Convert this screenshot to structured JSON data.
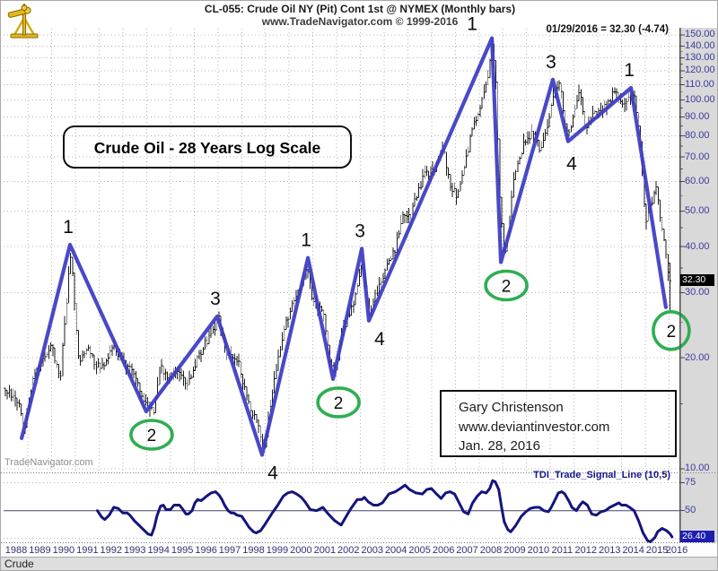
{
  "header": {
    "title": "CL-055:  Crude Oil NY (Pit) Cont 1st @ NYMEX  (Monthly bars)",
    "subtitle": "www.TradeNavigator.com © 1999-2016",
    "quote": "01/29/2016 = 32.30 (-4.74)"
  },
  "colors": {
    "wave_blue": "#3b3bc4",
    "tdi_navy": "#14147e",
    "circle_green": "#2fae52",
    "bar_black": "#1c1c1c",
    "grid_gray": "#b4b4b4",
    "axis_text": "#3a3a9e",
    "tag_black_bg": "#000000",
    "tag_blue_bg": "#1d1db0"
  },
  "annotations": {
    "scale_box_label": "Crude Oil - 28 Years Log Scale",
    "credit": [
      "Gary Christenson",
      "www.deviantinvestor.com",
      "Jan. 28, 2016"
    ],
    "watermark": "TradeNavigator.com",
    "indicator_label": "TDI_Trade_Signal_Line (10,5)",
    "pane_label": "Crude",
    "last_price_tag": "32.30",
    "indicator_value_tag": "26.40"
  },
  "chart_data": {
    "type": "line",
    "subtype": "monthly-ohlc-bars-with-elliott-wave-overlay",
    "title": "Crude Oil - 28 Years Log Scale",
    "y_scale": "log",
    "y_range": [
      9.5,
      160
    ],
    "x_range": [
      1988,
      2016.6
    ],
    "price_axis_ticks": [
      150,
      140,
      130,
      120,
      110,
      100,
      90,
      80,
      70,
      60,
      50,
      40,
      30,
      20,
      10
    ],
    "minor_axis_ticks": [
      135,
      125,
      115,
      105,
      95,
      85,
      75,
      65,
      55,
      45,
      35,
      25,
      15
    ],
    "x_ticks": [
      1988,
      1989,
      1990,
      1991,
      1992,
      1993,
      1994,
      1995,
      1996,
      1997,
      1998,
      1999,
      2000,
      2001,
      2002,
      2003,
      2004,
      2005,
      2006,
      2007,
      2008,
      2009,
      2010,
      2011,
      2012,
      2013,
      2014,
      2015,
      2016
    ],
    "last_price": 32.3,
    "last_change": -4.74,
    "series": [
      {
        "name": "crude-oil-monthly-close-approx",
        "points": [
          [
            1988.04,
            16.5
          ],
          [
            1988.3,
            16
          ],
          [
            1988.65,
            15
          ],
          [
            1988.85,
            12.8
          ],
          [
            1989.2,
            17.5
          ],
          [
            1989.6,
            19.5
          ],
          [
            1990.0,
            21.5
          ],
          [
            1990.35,
            17
          ],
          [
            1990.6,
            27
          ],
          [
            1990.78,
            39
          ],
          [
            1991.0,
            26
          ],
          [
            1991.15,
            19.5
          ],
          [
            1991.5,
            21
          ],
          [
            1991.9,
            19
          ],
          [
            1992.3,
            19.5
          ],
          [
            1992.6,
            21.5
          ],
          [
            1993.0,
            19.5
          ],
          [
            1993.4,
            18.5
          ],
          [
            1993.9,
            15.2
          ],
          [
            1994.1,
            14.8
          ],
          [
            1994.3,
            14.5
          ],
          [
            1994.6,
            19
          ],
          [
            1994.9,
            17.5
          ],
          [
            1995.3,
            18.5
          ],
          [
            1995.7,
            17
          ],
          [
            1996.1,
            19.5
          ],
          [
            1996.4,
            21.5
          ],
          [
            1996.9,
            24.5
          ],
          [
            1997.05,
            25.5
          ],
          [
            1997.4,
            20.5
          ],
          [
            1997.8,
            20
          ],
          [
            1998.2,
            15.5
          ],
          [
            1998.6,
            13.5
          ],
          [
            1998.95,
            11.2
          ],
          [
            1999.3,
            16
          ],
          [
            1999.7,
            22.5
          ],
          [
            2000.1,
            28
          ],
          [
            2000.5,
            30
          ],
          [
            2000.75,
            35.5
          ],
          [
            2001.0,
            28
          ],
          [
            2001.4,
            27
          ],
          [
            2001.75,
            19
          ],
          [
            2001.95,
            18.5
          ],
          [
            2002.3,
            24
          ],
          [
            2002.7,
            28
          ],
          [
            2003.1,
            36.5
          ],
          [
            2003.35,
            26.5
          ],
          [
            2003.7,
            30
          ],
          [
            2004.1,
            35
          ],
          [
            2004.5,
            40
          ],
          [
            2004.8,
            49
          ],
          [
            2005.1,
            48
          ],
          [
            2005.5,
            58
          ],
          [
            2005.75,
            64
          ],
          [
            2006.0,
            63
          ],
          [
            2006.5,
            73
          ],
          [
            2006.8,
            59
          ],
          [
            2007.05,
            55
          ],
          [
            2007.4,
            66
          ],
          [
            2007.8,
            87
          ],
          [
            2008.1,
            97
          ],
          [
            2008.35,
            112
          ],
          [
            2008.55,
            144
          ],
          [
            2008.7,
            114
          ],
          [
            2008.85,
            56
          ],
          [
            2009.05,
            38
          ],
          [
            2009.2,
            41
          ],
          [
            2009.5,
            64
          ],
          [
            2009.9,
            76
          ],
          [
            2010.3,
            82
          ],
          [
            2010.55,
            73
          ],
          [
            2010.9,
            86
          ],
          [
            2011.2,
            105
          ],
          [
            2011.4,
            110
          ],
          [
            2011.6,
            87
          ],
          [
            2011.8,
            80
          ],
          [
            2012.1,
            100
          ],
          [
            2012.25,
            104
          ],
          [
            2012.5,
            83
          ],
          [
            2012.85,
            91
          ],
          [
            2013.1,
            94
          ],
          [
            2013.5,
            98
          ],
          [
            2013.7,
            106
          ],
          [
            2014.0,
            96
          ],
          [
            2014.3,
            101
          ],
          [
            2014.5,
            105
          ],
          [
            2014.75,
            83
          ],
          [
            2015.0,
            46
          ],
          [
            2015.25,
            52
          ],
          [
            2015.45,
            59
          ],
          [
            2015.7,
            45
          ],
          [
            2015.9,
            37
          ],
          [
            2016.04,
            31.5
          ]
        ]
      },
      {
        "name": "elliott-wave-line",
        "points": [
          {
            "year": 1988.73,
            "price": 12.1,
            "label": "",
            "placement": ""
          },
          {
            "year": 1990.77,
            "price": 40.5,
            "label": "1",
            "placement": "above"
          },
          {
            "year": 1993.98,
            "price": 14.3,
            "label": "2",
            "placement": "circle"
          },
          {
            "year": 1996.97,
            "price": 25.9,
            "label": "3",
            "placement": "above"
          },
          {
            "year": 1998.86,
            "price": 10.9,
            "label": "4",
            "placement": "below-right"
          },
          {
            "year": 2000.79,
            "price": 37.3,
            "label": "1",
            "placement": "above"
          },
          {
            "year": 2001.85,
            "price": 17.5,
            "label": "2",
            "placement": "circle"
          },
          {
            "year": 2003.06,
            "price": 39.5,
            "label": "3",
            "placement": "above"
          },
          {
            "year": 2003.36,
            "price": 25.2,
            "label": "4",
            "placement": "below-right"
          },
          {
            "year": 2008.54,
            "price": 147.0,
            "label": "1",
            "placement": "above-left"
          },
          {
            "year": 2008.92,
            "price": 36.3,
            "label": "2",
            "placement": "circle"
          },
          {
            "year": 2011.11,
            "price": 113.5,
            "label": "3",
            "placement": "above"
          },
          {
            "year": 2011.75,
            "price": 77.2,
            "label": "4",
            "placement": "below"
          },
          {
            "year": 2014.4,
            "price": 107.8,
            "label": "1",
            "placement": "above"
          },
          {
            "year": 2015.87,
            "price": 27.4,
            "label": "2",
            "placement": "circle"
          }
        ]
      },
      {
        "name": "tdi-trade-signal-line",
        "pane": "lower",
        "levels": [
          75,
          50,
          25
        ],
        "level_labels": [
          "75",
          "50"
        ],
        "last_value": 26.4,
        "points": [
          [
            1991.92,
            50
          ],
          [
            1992.11,
            44
          ],
          [
            1992.23,
            42
          ],
          [
            1992.42,
            46
          ],
          [
            1992.61,
            53
          ],
          [
            1992.8,
            52
          ],
          [
            1992.99,
            48
          ],
          [
            1993.18,
            48
          ],
          [
            1993.29,
            46
          ],
          [
            1993.48,
            41
          ],
          [
            1993.67,
            37
          ],
          [
            1993.86,
            33
          ],
          [
            1994.05,
            29
          ],
          [
            1994.2,
            28
          ],
          [
            1994.32,
            35
          ],
          [
            1994.43,
            45
          ],
          [
            1994.58,
            54
          ],
          [
            1994.7,
            55
          ],
          [
            1994.81,
            51
          ],
          [
            1995.0,
            51
          ],
          [
            1995.15,
            55
          ],
          [
            1995.38,
            55
          ],
          [
            1995.53,
            51
          ],
          [
            1995.65,
            47
          ],
          [
            1995.76,
            47
          ],
          [
            1995.91,
            50
          ],
          [
            1996.03,
            57
          ],
          [
            1996.14,
            60
          ],
          [
            1996.29,
            59
          ],
          [
            1996.41,
            61
          ],
          [
            1996.52,
            63
          ],
          [
            1996.71,
            66
          ],
          [
            1996.9,
            67
          ],
          [
            1997.05,
            64
          ],
          [
            1997.17,
            60
          ],
          [
            1997.28,
            55
          ],
          [
            1997.43,
            50
          ],
          [
            1997.55,
            48
          ],
          [
            1997.66,
            48
          ],
          [
            1997.81,
            46
          ],
          [
            1998.0,
            45
          ],
          [
            1998.19,
            39
          ],
          [
            1998.31,
            35
          ],
          [
            1998.5,
            31
          ],
          [
            1998.61,
            30
          ],
          [
            1998.8,
            32
          ],
          [
            1998.99,
            38
          ],
          [
            1999.26,
            47
          ],
          [
            1999.52,
            55
          ],
          [
            1999.75,
            63
          ],
          [
            1999.94,
            66
          ],
          [
            2000.13,
            67
          ],
          [
            2000.32,
            65
          ],
          [
            2000.51,
            62
          ],
          [
            2000.67,
            58
          ],
          [
            2000.89,
            51
          ],
          [
            2001.16,
            50
          ],
          [
            2001.42,
            53
          ],
          [
            2001.65,
            47
          ],
          [
            2001.92,
            41
          ],
          [
            2002.19,
            37
          ],
          [
            2002.57,
            51
          ],
          [
            2002.87,
            60
          ],
          [
            2003.06,
            60
          ],
          [
            2003.17,
            62
          ],
          [
            2003.33,
            58
          ],
          [
            2003.55,
            55
          ],
          [
            2003.74,
            55
          ],
          [
            2003.93,
            57
          ],
          [
            2004.2,
            65
          ],
          [
            2004.47,
            67
          ],
          [
            2004.69,
            70
          ],
          [
            2004.88,
            73
          ],
          [
            2005.07,
            69
          ],
          [
            2005.34,
            66
          ],
          [
            2005.61,
            65
          ],
          [
            2005.8,
            69
          ],
          [
            2005.99,
            70
          ],
          [
            2006.21,
            65
          ],
          [
            2006.4,
            61
          ],
          [
            2006.59,
            66
          ],
          [
            2006.78,
            67
          ],
          [
            2006.97,
            65
          ],
          [
            2007.16,
            57
          ],
          [
            2007.35,
            49
          ],
          [
            2007.54,
            47
          ],
          [
            2007.73,
            57
          ],
          [
            2007.92,
            63
          ],
          [
            2008.11,
            67
          ],
          [
            2008.3,
            66
          ],
          [
            2008.45,
            70
          ],
          [
            2008.57,
            77
          ],
          [
            2008.68,
            76
          ],
          [
            2008.83,
            69
          ],
          [
            2008.95,
            53
          ],
          [
            2009.06,
            40
          ],
          [
            2009.21,
            33
          ],
          [
            2009.33,
            31
          ],
          [
            2009.52,
            36
          ],
          [
            2009.78,
            45
          ],
          [
            2009.97,
            49
          ],
          [
            2010.16,
            52
          ],
          [
            2010.35,
            53
          ],
          [
            2010.54,
            53
          ],
          [
            2010.73,
            50
          ],
          [
            2010.92,
            49
          ],
          [
            2011.04,
            53
          ],
          [
            2011.23,
            61
          ],
          [
            2011.34,
            66
          ],
          [
            2011.49,
            67
          ],
          [
            2011.61,
            65
          ],
          [
            2011.8,
            58
          ],
          [
            2011.91,
            53
          ],
          [
            2012.1,
            50
          ],
          [
            2012.25,
            55
          ],
          [
            2012.37,
            58
          ],
          [
            2012.56,
            55
          ],
          [
            2012.75,
            47
          ],
          [
            2012.94,
            46
          ],
          [
            2013.13,
            49
          ],
          [
            2013.32,
            50
          ],
          [
            2013.51,
            53
          ],
          [
            2013.7,
            55
          ],
          [
            2013.89,
            57
          ],
          [
            2014.0,
            55
          ],
          [
            2014.19,
            55
          ],
          [
            2014.34,
            53
          ],
          [
            2014.53,
            50
          ],
          [
            2014.72,
            41
          ],
          [
            2014.91,
            30
          ],
          [
            2015.1,
            23
          ],
          [
            2015.22,
            22
          ],
          [
            2015.41,
            26
          ],
          [
            2015.52,
            31
          ],
          [
            2015.71,
            34
          ],
          [
            2015.9,
            32
          ],
          [
            2016.05,
            29
          ],
          [
            2016.13,
            26.4
          ]
        ]
      }
    ]
  }
}
